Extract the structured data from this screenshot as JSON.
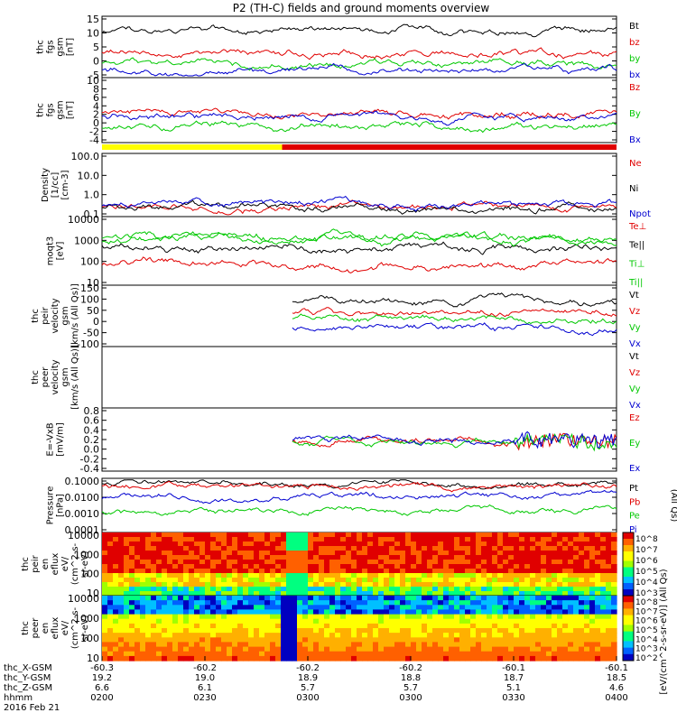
{
  "title": "P2 (TH-C) fields and ground moments overview",
  "footer": {
    "date": "2016 Feb 21",
    "rows": [
      {
        "label": "thc_X-GSM",
        "values": [
          "-60.3",
          "-60.2",
          "-60.2",
          "-60.2",
          "-60.1",
          "-60.1"
        ]
      },
      {
        "label": "thc_Y-GSM",
        "values": [
          "19.2",
          "19.0",
          "18.9",
          "18.8",
          "18.7",
          "18.5"
        ]
      },
      {
        "label": "thc_Z-GSM",
        "values": [
          "6.6",
          "6.1",
          "5.7",
          "5.7",
          "5.1",
          "4.6"
        ]
      },
      {
        "label": "hhmm",
        "values": [
          "0200",
          "0230",
          "0300",
          "0300",
          "0330",
          "0400"
        ]
      }
    ]
  },
  "colors": {
    "black": "#000000",
    "red": "#e00000",
    "green": "#00c800",
    "blue": "#0000d0",
    "yellow": "#ffff00",
    "barred": "#e00000"
  },
  "chart_data": [
    {
      "type": "line",
      "id": "fgs_gsm",
      "ylabel": [
        "thc",
        "fgs",
        "gsm",
        "[nT]"
      ],
      "yticks": [
        "15",
        "10",
        "5",
        "0",
        "-5"
      ],
      "ylim": [
        -6,
        16
      ],
      "legend": [
        {
          "text": "Bt",
          "color": "#000000"
        },
        {
          "text": "bz",
          "color": "#e00000"
        },
        {
          "text": "by",
          "color": "#00c800"
        },
        {
          "text": "bx",
          "color": "#0000d0"
        }
      ]
    },
    {
      "type": "line",
      "id": "fgs_gsm_bxyz",
      "ylabel": [
        "thc",
        "fgs",
        "gsm",
        "[nT]"
      ],
      "yticks": [
        "10",
        "8",
        "6",
        "4",
        "2",
        "0",
        "-2",
        "-4"
      ],
      "ylim": [
        -5,
        10
      ],
      "legend": [
        {
          "text": "Bz",
          "color": "#e00000"
        },
        {
          "text": "By",
          "color": "#00c800"
        },
        {
          "text": "Bx",
          "color": "#0000d0"
        }
      ]
    },
    {
      "type": "line",
      "id": "density",
      "ylabel": [
        "Density",
        "[1/cc]",
        "[cm-3]"
      ],
      "yticks": [
        "100.0",
        "10.0",
        "1.0",
        "0.1"
      ],
      "ylim": [
        0.05,
        300
      ],
      "legend": [
        {
          "text": "Ne",
          "color": "#e00000"
        },
        {
          "text": "Ni",
          "color": "#000000"
        },
        {
          "text": "Npot",
          "color": "#0000d0"
        }
      ]
    },
    {
      "type": "line",
      "id": "temperature",
      "ylabel": [
        "moqt3",
        "[eV]"
      ],
      "yticks": [
        "10000",
        "1000",
        "100",
        "10"
      ],
      "ylim": [
        10,
        10000
      ],
      "legend": [
        {
          "text": "Te⊥",
          "color": "#e00000"
        },
        {
          "text": "Te||",
          "color": "#000000"
        },
        {
          "text": "Ti⊥",
          "color": "#00c800"
        },
        {
          "text": "Ti||",
          "color": "#00c800"
        }
      ]
    },
    {
      "type": "line",
      "id": "peir_velocity",
      "ylabel": [
        "thc",
        "peir",
        "velocity",
        "gsm",
        "[km/s (All Qs)]"
      ],
      "yticks": [
        "150",
        "100",
        "50",
        "0",
        "-50",
        "-100"
      ],
      "ylim": [
        -110,
        150
      ],
      "legend": [
        {
          "text": "Vt",
          "color": "#000000"
        },
        {
          "text": "Vz",
          "color": "#e00000"
        },
        {
          "text": "Vy",
          "color": "#00c800"
        },
        {
          "text": "Vx",
          "color": "#0000d0"
        }
      ]
    },
    {
      "type": "line",
      "id": "peer_velocity",
      "ylabel": [
        "thc",
        "peer",
        "velocity",
        "gsm",
        "[km/s (All Qs)]"
      ],
      "yticks": [],
      "ylim": [
        0,
        1
      ],
      "legend": [
        {
          "text": "Vt",
          "color": "#000000"
        },
        {
          "text": "Vz",
          "color": "#e00000"
        },
        {
          "text": "Vy",
          "color": "#00c800"
        },
        {
          "text": "Vx",
          "color": "#0000d0"
        }
      ]
    },
    {
      "type": "line",
      "id": "efield",
      "ylabel": [
        "E=-VxB",
        "[mV/m]"
      ],
      "yticks": [
        "0.8",
        "0.6",
        "0.4",
        "0.2",
        "0.0",
        "-0.2",
        "-0.4"
      ],
      "ylim": [
        -0.45,
        0.8
      ],
      "legend": [
        {
          "text": "Ez",
          "color": "#e00000"
        },
        {
          "text": "Ey",
          "color": "#00c800"
        },
        {
          "text": "Ex",
          "color": "#0000d0"
        }
      ]
    },
    {
      "type": "line",
      "id": "pressure",
      "ylabel": [
        "Pressure",
        "[nPa]"
      ],
      "yticks": [
        "0.1000",
        "0.0100",
        "0.0010",
        "0.0001"
      ],
      "ylim": [
        0.0001,
        0.12
      ],
      "legend": [
        {
          "text": "Pt",
          "color": "#000000"
        },
        {
          "text": "Pb",
          "color": "#e00000"
        },
        {
          "text": "Pe",
          "color": "#00c800"
        },
        {
          "text": "Pi",
          "color": "#0000d0"
        }
      ],
      "side_label": "(All Qs)"
    },
    {
      "type": "heatmap",
      "id": "peir_eflux",
      "ylabel": [
        "thc",
        "peir",
        "en",
        "eflux",
        "eV/",
        "(cm^2-s-",
        "sr-eV)"
      ],
      "yticks": [
        "10000",
        "1000",
        "100",
        "10"
      ],
      "ylim": [
        5,
        30000
      ],
      "colorbar": {
        "ticks": [
          "10^8",
          "10^7",
          "10^6",
          "10^5",
          "10^4",
          "10^3"
        ],
        "label": "[eV/(cm^2-s-sr-eV)] (All Qs)"
      }
    },
    {
      "type": "heatmap",
      "id": "peer_eflux",
      "ylabel": [
        "thc",
        "peer",
        "en",
        "eflux",
        "eV/",
        "(cm^2-s-",
        "sr-eV)"
      ],
      "yticks": [
        "10000",
        "1000",
        "100",
        "10"
      ],
      "ylim": [
        5,
        30000
      ],
      "colorbar": {
        "ticks": [
          "10^8",
          "10^7",
          "10^6",
          "10^5",
          "10^4",
          "10^3",
          "10^2"
        ],
        "label": "[eV/(cm^2-s-sr-eV)] (All Qs)"
      }
    }
  ]
}
